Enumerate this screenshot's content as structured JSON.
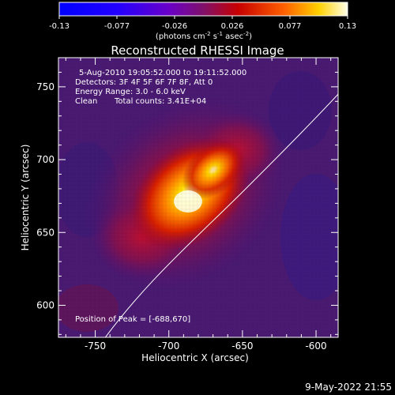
{
  "colorbar": {
    "tick_labels": [
      "-0.13",
      "-0.077",
      "-0.026",
      "0.026",
      "0.077",
      "0.13"
    ],
    "units_prefix": "(photons cm",
    "units_exp1": "-2",
    "units_mid1": " s",
    "units_exp2": "-1",
    "units_mid2": " asec",
    "units_exp3": "-2",
    "units_suffix": ")"
  },
  "title": "Reconstructed RHESSI Image",
  "info": {
    "line1": "5-Aug-2010 19:05:52.000 to 19:11:52.000",
    "line2": "Detectors: 3F 4F 5F 6F 7F 8F, Att 0",
    "line3": "Energy Range: 3.0 - 6.0 keV",
    "line4_a": "Clean",
    "line4_b": "Total counts: 3.41E+04"
  },
  "peak_label": "Position of Peak = [-688,670]",
  "axes": {
    "x_label": "Heliocentric X (arcsec)",
    "y_label": "Heliocentric Y (arcsec)",
    "x_ticks": [
      "-750",
      "-700",
      "-650",
      "-600"
    ],
    "y_ticks": [
      "600",
      "650",
      "700",
      "750"
    ]
  },
  "footer_timestamp": "9-May-2022 21:55",
  "colors": {
    "background": "#000000",
    "axis": "#ffffff",
    "colormap_low": "#0000ff",
    "colormap_mid": "#5a0090",
    "colormap_high": "#ffffe0"
  },
  "image_data": {
    "peak_position": [
      -688,
      670
    ],
    "x_range": [
      -775,
      -585
    ],
    "y_range": [
      578,
      770
    ]
  }
}
